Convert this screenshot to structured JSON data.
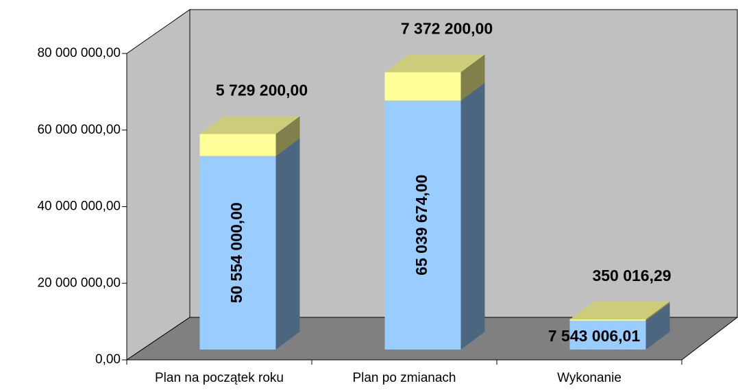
{
  "chart_data": {
    "type": "bar3d_stacked",
    "categories": [
      "Plan na początek roku",
      "Plan po zmianach",
      "Wykonanie"
    ],
    "series": [
      {
        "color": "#99ccff",
        "values": [
          50554000,
          65039674,
          7543006.01
        ],
        "value_labels": [
          "50 554 000,00",
          "65 039 674,00",
          "7 543 006,01"
        ]
      },
      {
        "color": "#ffff99",
        "values": [
          5729200,
          7372200,
          350016.29
        ],
        "value_labels": [
          "5 729 200,00",
          "7 372 200,00",
          "350 016,29"
        ]
      }
    ],
    "ylim": [
      0,
      80000000
    ],
    "yticks": [
      {
        "value": 0,
        "label": "0,00"
      },
      {
        "value": 20000000,
        "label": "20 000 000,00"
      },
      {
        "value": 40000000,
        "label": "40 000 000,00"
      },
      {
        "value": 60000000,
        "label": "60 000 000,00"
      },
      {
        "value": 80000000,
        "label": "80 000 000,00"
      }
    ]
  }
}
